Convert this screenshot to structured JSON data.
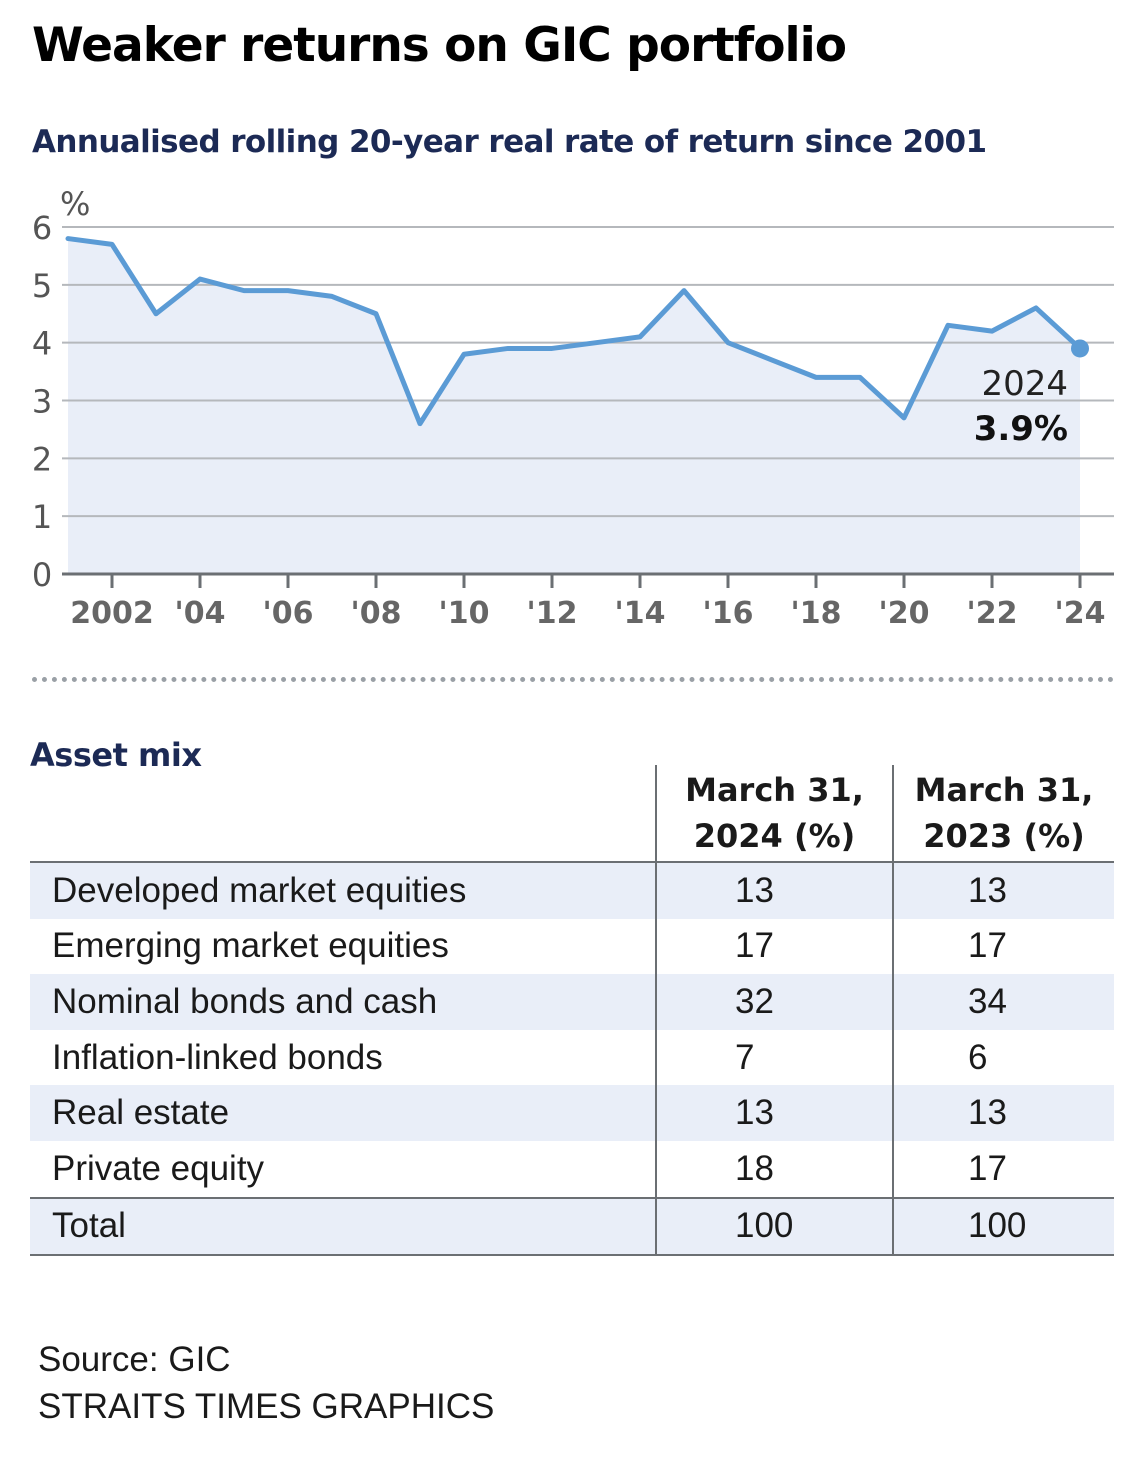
{
  "title": "Weaker returns on GIC portfolio",
  "subtitle": "Annualised rolling 20-year real rate of return since 2001",
  "chart_data": {
    "type": "area",
    "title": "Annualised rolling 20-year real rate of return since 2001",
    "ylabel": "%",
    "xlabel": "",
    "ylim": [
      0,
      6
    ],
    "xlim": [
      2001,
      2024
    ],
    "yticks": [
      0,
      1,
      2,
      3,
      4,
      5,
      6
    ],
    "xticks": [
      {
        "value": 2002,
        "label": "2002"
      },
      {
        "value": 2004,
        "label": "'04"
      },
      {
        "value": 2006,
        "label": "'06"
      },
      {
        "value": 2008,
        "label": "'08"
      },
      {
        "value": 2010,
        "label": "'10"
      },
      {
        "value": 2012,
        "label": "'12"
      },
      {
        "value": 2014,
        "label": "'14"
      },
      {
        "value": 2016,
        "label": "'16"
      },
      {
        "value": 2018,
        "label": "'18"
      },
      {
        "value": 2020,
        "label": "'20"
      },
      {
        "value": 2022,
        "label": "'22"
      },
      {
        "value": 2024,
        "label": "'24"
      }
    ],
    "x": [
      2001,
      2002,
      2003,
      2004,
      2005,
      2006,
      2007,
      2008,
      2009,
      2010,
      2011,
      2012,
      2013,
      2014,
      2015,
      2016,
      2017,
      2018,
      2019,
      2020,
      2021,
      2022,
      2023,
      2024
    ],
    "values": [
      5.8,
      5.7,
      4.5,
      5.1,
      4.9,
      4.9,
      4.8,
      4.5,
      2.6,
      3.8,
      3.9,
      3.9,
      4.0,
      4.1,
      4.9,
      4.0,
      3.7,
      3.4,
      3.4,
      2.7,
      4.3,
      4.2,
      4.6,
      3.9
    ],
    "annotation": {
      "x": 2024,
      "year_label": "2024",
      "value_label": "3.9%"
    },
    "colors": {
      "line": "#5b9bd5",
      "fill": "#e9eef8",
      "grid": "#b5b8bc",
      "axis": "#6b6f73"
    }
  },
  "asset_mix": {
    "title": "Asset mix",
    "headers": [
      "March 31,",
      "2024 (%)",
      "March 31,",
      "2023 (%)"
    ],
    "rows": [
      {
        "label": "Developed market equities",
        "y2024": "13",
        "y2023": "13"
      },
      {
        "label": "Emerging market equities",
        "y2024": "17",
        "y2023": "17"
      },
      {
        "label": "Nominal bonds and cash",
        "y2024": "32",
        "y2023": "34"
      },
      {
        "label": "Inflation-linked bonds",
        "y2024": "7",
        "y2023": "6"
      },
      {
        "label": "Real estate",
        "y2024": "13",
        "y2023": "13"
      },
      {
        "label": "Private equity",
        "y2024": "18",
        "y2023": "17"
      }
    ],
    "total": {
      "label": "Total",
      "y2024": "100",
      "y2023": "100"
    }
  },
  "footer": {
    "source": "Source: GIC",
    "credit": "STRAITS TIMES GRAPHICS"
  }
}
